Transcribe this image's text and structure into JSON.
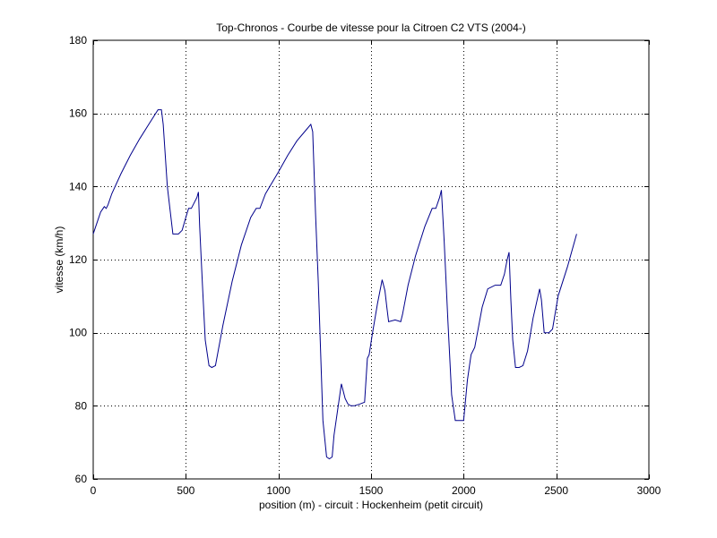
{
  "chart_data": {
    "type": "line",
    "title": "Top-Chronos - Courbe de vitesse pour la Citroen C2 VTS (2004-)",
    "xlabel": "position (m) - circuit : Hockenheim (petit circuit)",
    "ylabel": "vitesse (km/h)",
    "xlim": [
      0,
      3000
    ],
    "ylim": [
      60,
      180
    ],
    "xticks": [
      0,
      500,
      1000,
      1500,
      2000,
      2500,
      3000
    ],
    "yticks": [
      60,
      80,
      100,
      120,
      140,
      160,
      180
    ],
    "xtick_labels": [
      "0",
      "500",
      "1000",
      "1500",
      "2000",
      "2500",
      "3000"
    ],
    "ytick_labels": [
      "60",
      "80",
      "100",
      "120",
      "140",
      "160",
      "180"
    ],
    "grid": true,
    "line_color": "#00008b",
    "series": [
      {
        "x": [
          0,
          20,
          40,
          60,
          70,
          80,
          100,
          150,
          200,
          250,
          300,
          350,
          368,
          378,
          400,
          430,
          460,
          480,
          500,
          515,
          530,
          545,
          560,
          568,
          575,
          590,
          605,
          625,
          640,
          660,
          700,
          750,
          800,
          850,
          880,
          900,
          930,
          1000,
          1050,
          1100,
          1150,
          1175,
          1185,
          1200,
          1215,
          1240,
          1260,
          1275,
          1290,
          1300,
          1340,
          1360,
          1375,
          1390,
          1410,
          1440,
          1465,
          1480,
          1490,
          1505,
          1535,
          1560,
          1575,
          1585,
          1595,
          1630,
          1660,
          1670,
          1700,
          1740,
          1790,
          1830,
          1850,
          1870,
          1880,
          1895,
          1915,
          1935,
          1955,
          1975,
          2000,
          2020,
          2040,
          2060,
          2100,
          2130,
          2170,
          2200,
          2220,
          2235,
          2245,
          2255,
          2265,
          2280,
          2300,
          2320,
          2345,
          2375,
          2410,
          2420,
          2435,
          2460,
          2480,
          2510,
          2560,
          2610
        ],
        "y": [
          127,
          130,
          133,
          134.5,
          134,
          135,
          138,
          143.5,
          148.5,
          153,
          157,
          161,
          161,
          157,
          140,
          127,
          127,
          128,
          131.5,
          134,
          134,
          135.5,
          137,
          138.5,
          129,
          113,
          98,
          91,
          90.5,
          91,
          102,
          114,
          124,
          131.5,
          134,
          134,
          138,
          144,
          148.5,
          152.5,
          155.5,
          157,
          155,
          133,
          114,
          76,
          66,
          65.5,
          66,
          72,
          86,
          82,
          80.5,
          80,
          80,
          80.5,
          81,
          93,
          94,
          99,
          108,
          114.5,
          111.5,
          107,
          103,
          103.5,
          103,
          105,
          113,
          121,
          129,
          134,
          134,
          137,
          139,
          125,
          103,
          83,
          76,
          76,
          76,
          87,
          94,
          96,
          107,
          112,
          113,
          113,
          116,
          120,
          122,
          109,
          98,
          90.5,
          90.5,
          91,
          95,
          104,
          112,
          109,
          100,
          100,
          101,
          110,
          118,
          127
        ]
      }
    ]
  }
}
